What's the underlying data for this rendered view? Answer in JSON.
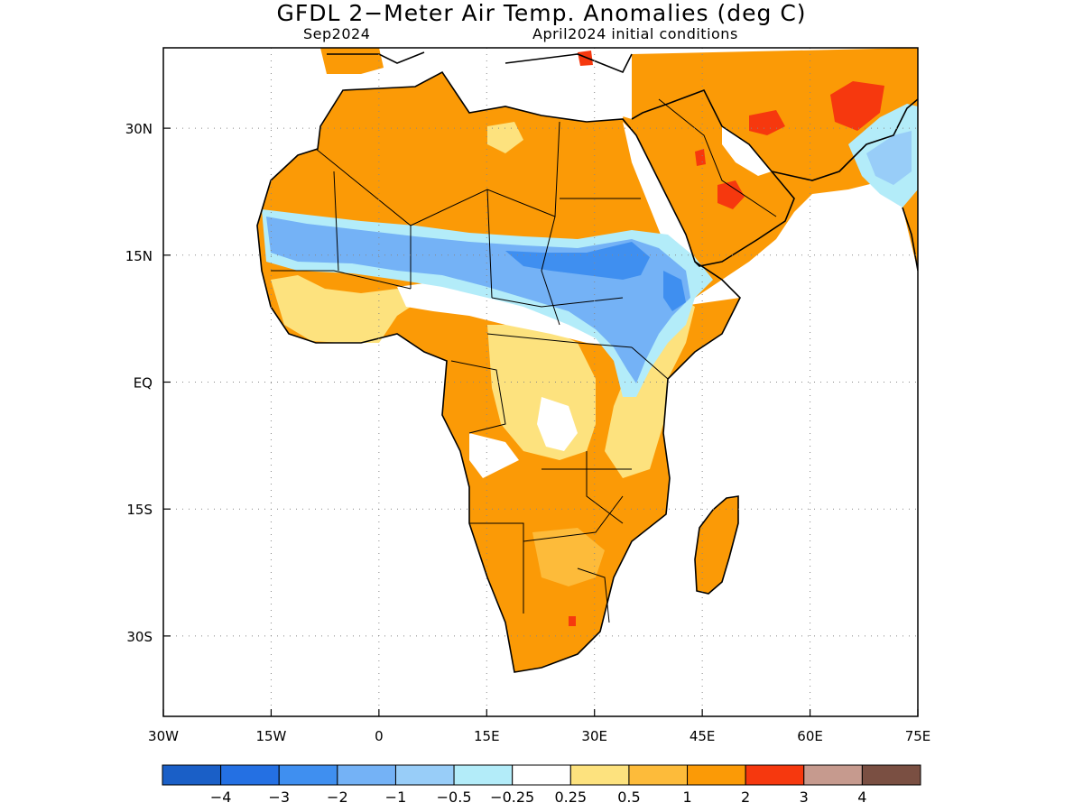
{
  "title": "GFDL 2−Meter Air Temp. Anomalies (deg C)",
  "subtitle_left": "Sep2024",
  "subtitle_right": "April2024 initial conditions",
  "map": {
    "lon_range": [
      -30,
      75
    ],
    "lat_range": [
      -39.5,
      39.5
    ],
    "x_ticks": [
      {
        "value": -30,
        "label": "30W"
      },
      {
        "value": -15,
        "label": "15W"
      },
      {
        "value": 0,
        "label": "0"
      },
      {
        "value": 15,
        "label": "15E"
      },
      {
        "value": 30,
        "label": "30E"
      },
      {
        "value": 45,
        "label": "45E"
      },
      {
        "value": 60,
        "label": "60E"
      },
      {
        "value": 75,
        "label": "75E"
      }
    ],
    "y_ticks": [
      {
        "value": 30,
        "label": "30N"
      },
      {
        "value": 15,
        "label": "15N"
      },
      {
        "value": 0,
        "label": "EQ"
      },
      {
        "value": -15,
        "label": "15S"
      },
      {
        "value": -30,
        "label": "30S"
      }
    ],
    "grid": true
  },
  "colorbar": {
    "colors": [
      "#1a5fc7",
      "#2470e3",
      "#3f8ff0",
      "#74b2f6",
      "#98cdf8",
      "#b3ecf9",
      "#ffffff",
      "#fde27e",
      "#fdbb3a",
      "#fb9a06",
      "#f6380e",
      "#c69a8e",
      "#7a4f42"
    ],
    "labels": [
      "−4",
      "−3",
      "−2",
      "−1",
      "−0.5",
      "−0.25",
      "0.25",
      "0.5",
      "1",
      "2",
      "3",
      "4"
    ]
  }
}
